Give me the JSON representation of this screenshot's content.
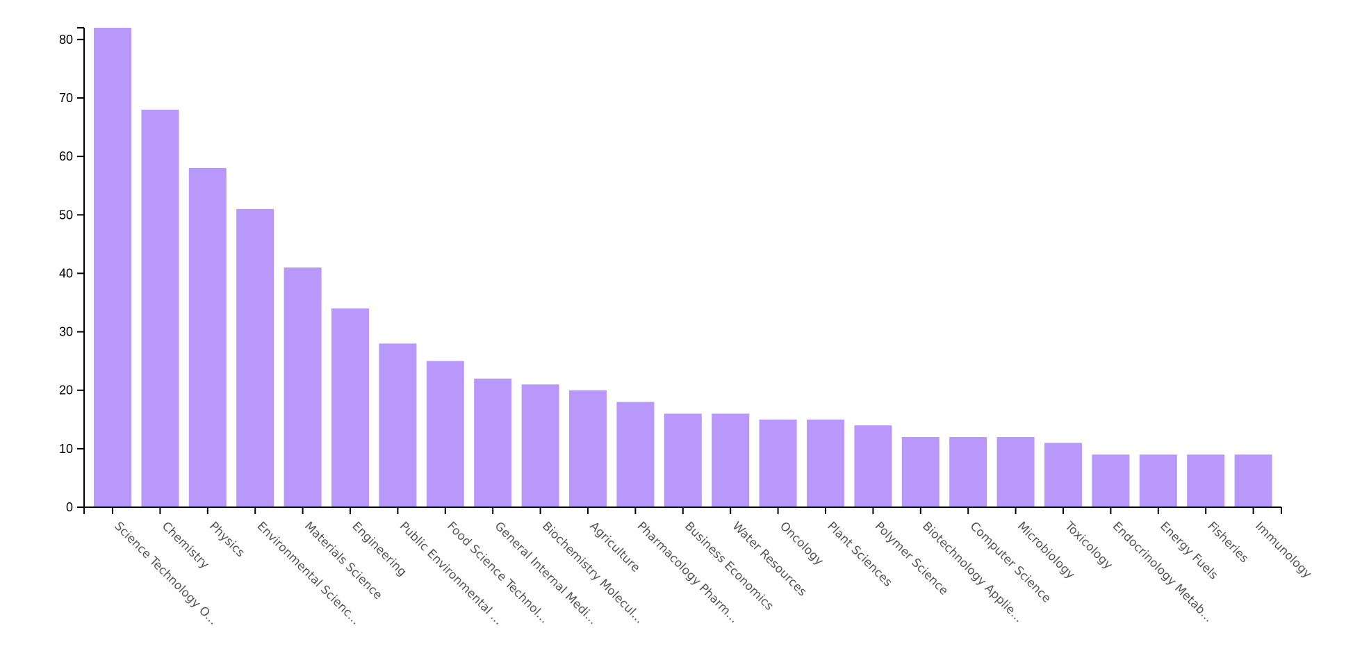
{
  "chart_data": {
    "type": "bar",
    "categories": [
      "Science Technology O...",
      "Chemistry",
      "Physics",
      "Environmental Scienc...",
      "Materials Science",
      "Engineering",
      "Public Environmental ...",
      "Food Science Technol...",
      "General Internal Medi...",
      "Biochemistry Molecul...",
      "Agriculture",
      "Pharmacology Pharm...",
      "Business Economics",
      "Water Resources",
      "Oncology",
      "Plant Sciences",
      "Polymer Science",
      "Biotechnology Applie...",
      "Computer Science",
      "Microbiology",
      "Toxicology",
      "Endocrinology Metab...",
      "Energy Fuels",
      "Fisheries",
      "Immunology"
    ],
    "values": [
      82,
      68,
      58,
      51,
      41,
      34,
      28,
      25,
      22,
      21,
      20,
      18,
      16,
      16,
      15,
      15,
      14,
      12,
      12,
      12,
      11,
      9,
      9,
      9,
      9
    ],
    "yticks": [
      "0",
      "10",
      "20",
      "30",
      "40",
      "50",
      "60",
      "70",
      "80"
    ],
    "ylim": [
      0,
      82
    ],
    "title": "",
    "xlabel": "",
    "ylabel": "",
    "grid": false,
    "bar_color": "#b899fb",
    "axis_color": "#000000",
    "tick_label_color": "#555555"
  }
}
